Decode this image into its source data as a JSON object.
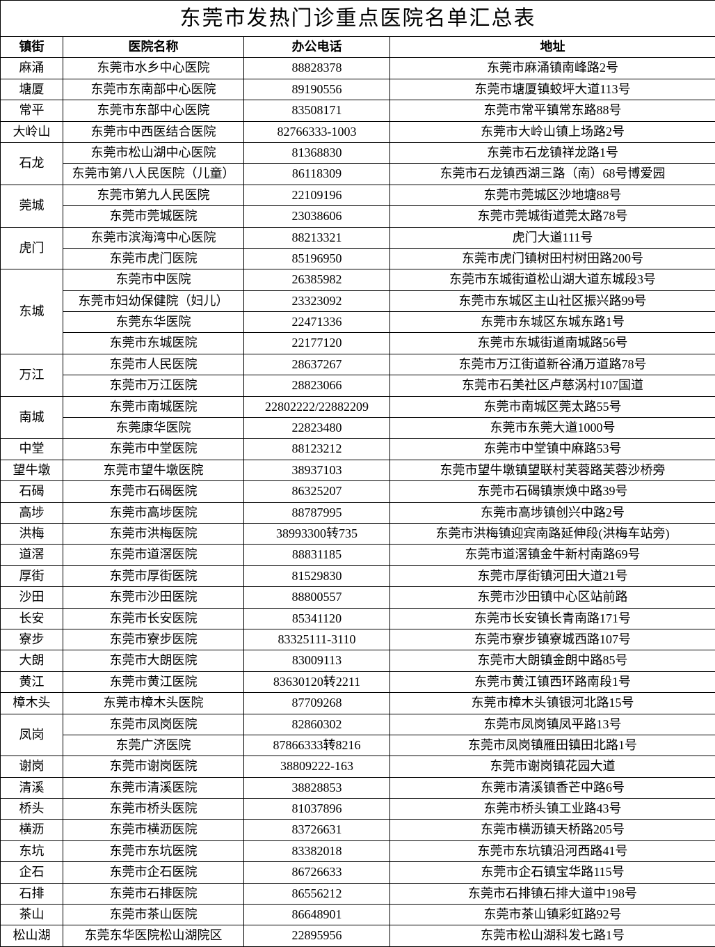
{
  "title": "东莞市发热门诊重点医院名单汇总表",
  "columns": {
    "town": "镇街",
    "name": "医院名称",
    "phone": "办公电话",
    "addr": "地址"
  },
  "column_widths": {
    "town": 90,
    "name": 260,
    "phone": 210,
    "addr": 468
  },
  "colors": {
    "border": "#000000",
    "background": "#ffffff",
    "text": "#000000"
  },
  "fonts": {
    "title_size": 30,
    "header_size": 18,
    "cell_size": 18,
    "family": "SimSun"
  },
  "groups": [
    {
      "town": "麻涌",
      "rows": [
        {
          "name": "东莞市水乡中心医院",
          "phone": "88828378",
          "addr": "东莞市麻涌镇南峰路2号"
        }
      ]
    },
    {
      "town": "塘厦",
      "rows": [
        {
          "name": "东莞市东南部中心医院",
          "phone": "89190556",
          "addr": "东莞市塘厦镇蛟坪大道113号"
        }
      ]
    },
    {
      "town": "常平",
      "rows": [
        {
          "name": "东莞市东部中心医院",
          "phone": "83508171",
          "addr": "东莞市常平镇常东路88号"
        }
      ]
    },
    {
      "town": "大岭山",
      "rows": [
        {
          "name": "东莞市中西医结合医院",
          "phone": "82766333-1003",
          "addr": "东莞市大岭山镇上场路2号"
        }
      ]
    },
    {
      "town": "石龙",
      "rows": [
        {
          "name": "东莞市松山湖中心医院",
          "phone": "81368830",
          "addr": "东莞市石龙镇祥龙路1号"
        },
        {
          "name": "东莞市第八人民医院（儿童）",
          "phone": "86118309",
          "addr": "东莞市石龙镇西湖三路（南）68号博爱园"
        }
      ]
    },
    {
      "town": "莞城",
      "rows": [
        {
          "name": "东莞市第九人民医院",
          "phone": "22109196",
          "addr": "东莞市莞城区沙地塘88号"
        },
        {
          "name": "东莞市莞城医院",
          "phone": "23038606",
          "addr": "东莞市莞城街道莞太路78号"
        }
      ]
    },
    {
      "town": "虎门",
      "rows": [
        {
          "name": "东莞市滨海湾中心医院",
          "phone": "88213321",
          "addr": "虎门大道111号"
        },
        {
          "name": "东莞市虎门医院",
          "phone": "85196950",
          "addr": "东莞市虎门镇树田村树田路200号"
        }
      ]
    },
    {
      "town": "东城",
      "rows": [
        {
          "name": "东莞市中医院",
          "phone": "26385982",
          "addr": "东莞市东城街道松山湖大道东城段3号"
        },
        {
          "name": "东莞市妇幼保健院（妇儿）",
          "phone": "23323092",
          "addr": "东莞市东城区主山社区振兴路99号"
        },
        {
          "name": "东莞东华医院",
          "phone": "22471336",
          "addr": "东莞市东城区东城东路1号"
        },
        {
          "name": "东莞市东城医院",
          "phone": "22177120",
          "addr": "东莞市东城街道南城路56号"
        }
      ]
    },
    {
      "town": "万江",
      "rows": [
        {
          "name": "东莞市人民医院",
          "phone": "28637267",
          "addr": "东莞市万江街道新谷涌万道路78号"
        },
        {
          "name": "东莞市万江医院",
          "phone": "28823066",
          "addr": "东莞市石美社区卢慈涡村107国道"
        }
      ]
    },
    {
      "town": "南城",
      "rows": [
        {
          "name": "东莞市南城医院",
          "phone": "22802222/22882209",
          "addr": "东莞市南城区莞太路55号"
        },
        {
          "name": "东莞康华医院",
          "phone": "22823480",
          "addr": "东莞市东莞大道1000号"
        }
      ]
    },
    {
      "town": "中堂",
      "rows": [
        {
          "name": "东莞市中堂医院",
          "phone": "88123212",
          "addr": "东莞市中堂镇中麻路53号"
        }
      ]
    },
    {
      "town": "望牛墩",
      "rows": [
        {
          "name": "东莞市望牛墩医院",
          "phone": "38937103",
          "addr": "东莞市望牛墩镇望联村芙蓉路芙蓉沙桥旁"
        }
      ]
    },
    {
      "town": "石碣",
      "rows": [
        {
          "name": "东莞市石碣医院",
          "phone": "86325207",
          "addr": "东莞市石碣镇崇焕中路39号"
        }
      ]
    },
    {
      "town": "高埗",
      "rows": [
        {
          "name": "东莞市高埗医院",
          "phone": "88787995",
          "addr": "东莞市高埗镇创兴中路2号"
        }
      ]
    },
    {
      "town": "洪梅",
      "rows": [
        {
          "name": "东莞市洪梅医院",
          "phone": "38993300转735",
          "addr": "东莞市洪梅镇迎宾南路延伸段(洪梅车站旁)"
        }
      ]
    },
    {
      "town": "道滘",
      "rows": [
        {
          "name": "东莞市道滘医院",
          "phone": "88831185",
          "addr": "东莞市道滘镇金牛新村南路69号"
        }
      ]
    },
    {
      "town": "厚街",
      "rows": [
        {
          "name": "东莞市厚街医院",
          "phone": "81529830",
          "addr": "东莞市厚街镇河田大道21号"
        }
      ]
    },
    {
      "town": "沙田",
      "rows": [
        {
          "name": "东莞市沙田医院",
          "phone": "88800557",
          "addr": "东莞市沙田镇中心区站前路"
        }
      ]
    },
    {
      "town": "长安",
      "rows": [
        {
          "name": "东莞市长安医院",
          "phone": "85341120",
          "addr": "东莞市长安镇长青南路171号"
        }
      ]
    },
    {
      "town": "寮步",
      "rows": [
        {
          "name": "东莞市寮步医院",
          "phone": "83325111-3110",
          "addr": "东莞市寮步镇寮城西路107号"
        }
      ]
    },
    {
      "town": "大朗",
      "rows": [
        {
          "name": "东莞市大朗医院",
          "phone": "83009113",
          "addr": "东莞市大朗镇金朗中路85号"
        }
      ]
    },
    {
      "town": "黄江",
      "rows": [
        {
          "name": "东莞市黄江医院",
          "phone": "83630120转2211",
          "addr": "东莞市黄江镇西环路南段1号"
        }
      ]
    },
    {
      "town": "樟木头",
      "rows": [
        {
          "name": "东莞市樟木头医院",
          "phone": "87709268",
          "addr": "东莞市樟木头镇银河北路15号"
        }
      ]
    },
    {
      "town": "凤岗",
      "rows": [
        {
          "name": "东莞市凤岗医院",
          "phone": "82860302",
          "addr": "东莞市凤岗镇凤平路13号"
        },
        {
          "name": "东莞广济医院",
          "phone": "87866333转8216",
          "addr": "东莞市凤岗镇雁田镇田北路1号"
        }
      ]
    },
    {
      "town": "谢岗",
      "rows": [
        {
          "name": "东莞市谢岗医院",
          "phone": "38809222-163",
          "addr": "东莞市谢岗镇花园大道"
        }
      ]
    },
    {
      "town": "清溪",
      "rows": [
        {
          "name": "东莞市清溪医院",
          "phone": "38828853",
          "addr": "东莞市清溪镇香芒中路6号"
        }
      ]
    },
    {
      "town": "桥头",
      "rows": [
        {
          "name": "东莞市桥头医院",
          "phone": "81037896",
          "addr": "东莞市桥头镇工业路43号"
        }
      ]
    },
    {
      "town": "横沥",
      "rows": [
        {
          "name": "东莞市横沥医院",
          "phone": "83726631",
          "addr": "东莞市横沥镇天桥路205号"
        }
      ]
    },
    {
      "town": "东坑",
      "rows": [
        {
          "name": "东莞市东坑医院",
          "phone": "83382018",
          "addr": "东莞市东坑镇沿河西路41号"
        }
      ]
    },
    {
      "town": "企石",
      "rows": [
        {
          "name": "东莞市企石医院",
          "phone": "86726633",
          "addr": "东莞市企石镇宝华路115号"
        }
      ]
    },
    {
      "town": "石排",
      "rows": [
        {
          "name": "东莞市石排医院",
          "phone": "86556212",
          "addr": "东莞市石排镇石排大道中198号"
        }
      ]
    },
    {
      "town": "茶山",
      "rows": [
        {
          "name": "东莞市茶山医院",
          "phone": "86648901",
          "addr": "东莞市茶山镇彩虹路92号"
        }
      ]
    },
    {
      "town": "松山湖",
      "rows": [
        {
          "name": "东莞东华医院松山湖院区",
          "phone": "22895956",
          "addr": "东莞市松山湖科发七路1号"
        }
      ]
    }
  ]
}
